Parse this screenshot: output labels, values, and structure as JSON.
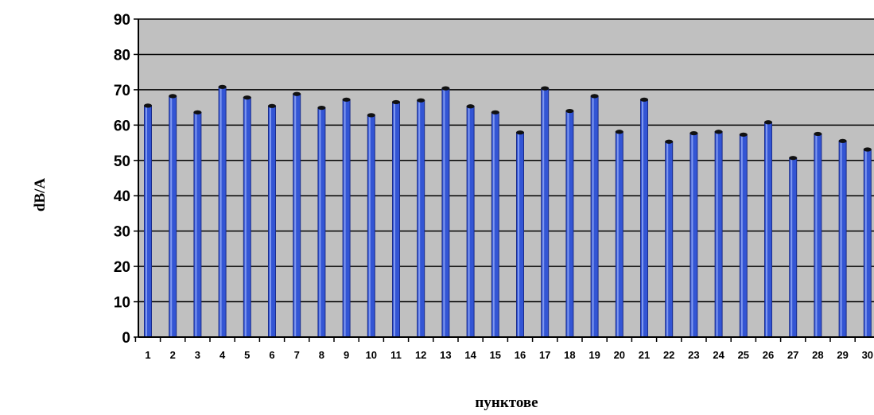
{
  "chart_data": {
    "type": "bar",
    "title": "",
    "xlabel": "пунктове",
    "ylabel": "dB/A",
    "ylim": [
      0,
      90
    ],
    "yticks": [
      0,
      10,
      20,
      30,
      40,
      50,
      60,
      70,
      80,
      90
    ],
    "grid": true,
    "legend": "none",
    "categories": [
      "1",
      "2",
      "3",
      "4",
      "5",
      "6",
      "7",
      "8",
      "9",
      "10",
      "11",
      "12",
      "13",
      "14",
      "15",
      "16",
      "17",
      "18",
      "19",
      "20",
      "21",
      "22",
      "23",
      "24",
      "25",
      "26",
      "27",
      "28",
      "29",
      "30"
    ],
    "values": [
      65.5,
      68.2,
      63.6,
      70.8,
      67.8,
      65.4,
      68.8,
      64.9,
      67.2,
      62.8,
      66.5,
      67.0,
      70.4,
      65.3,
      63.6,
      57.9,
      70.4,
      64.0,
      68.2,
      58.1,
      67.2,
      55.3,
      57.7,
      58.1,
      57.3,
      60.8,
      50.7,
      57.5,
      55.5,
      53.1
    ],
    "colors": {
      "plot_bg": "#c0c0c0",
      "bar_fill": "#3355d4",
      "bar_dark": "#1a2c8c",
      "bar_light": "#7f98ef",
      "gridline": "#000000"
    }
  }
}
